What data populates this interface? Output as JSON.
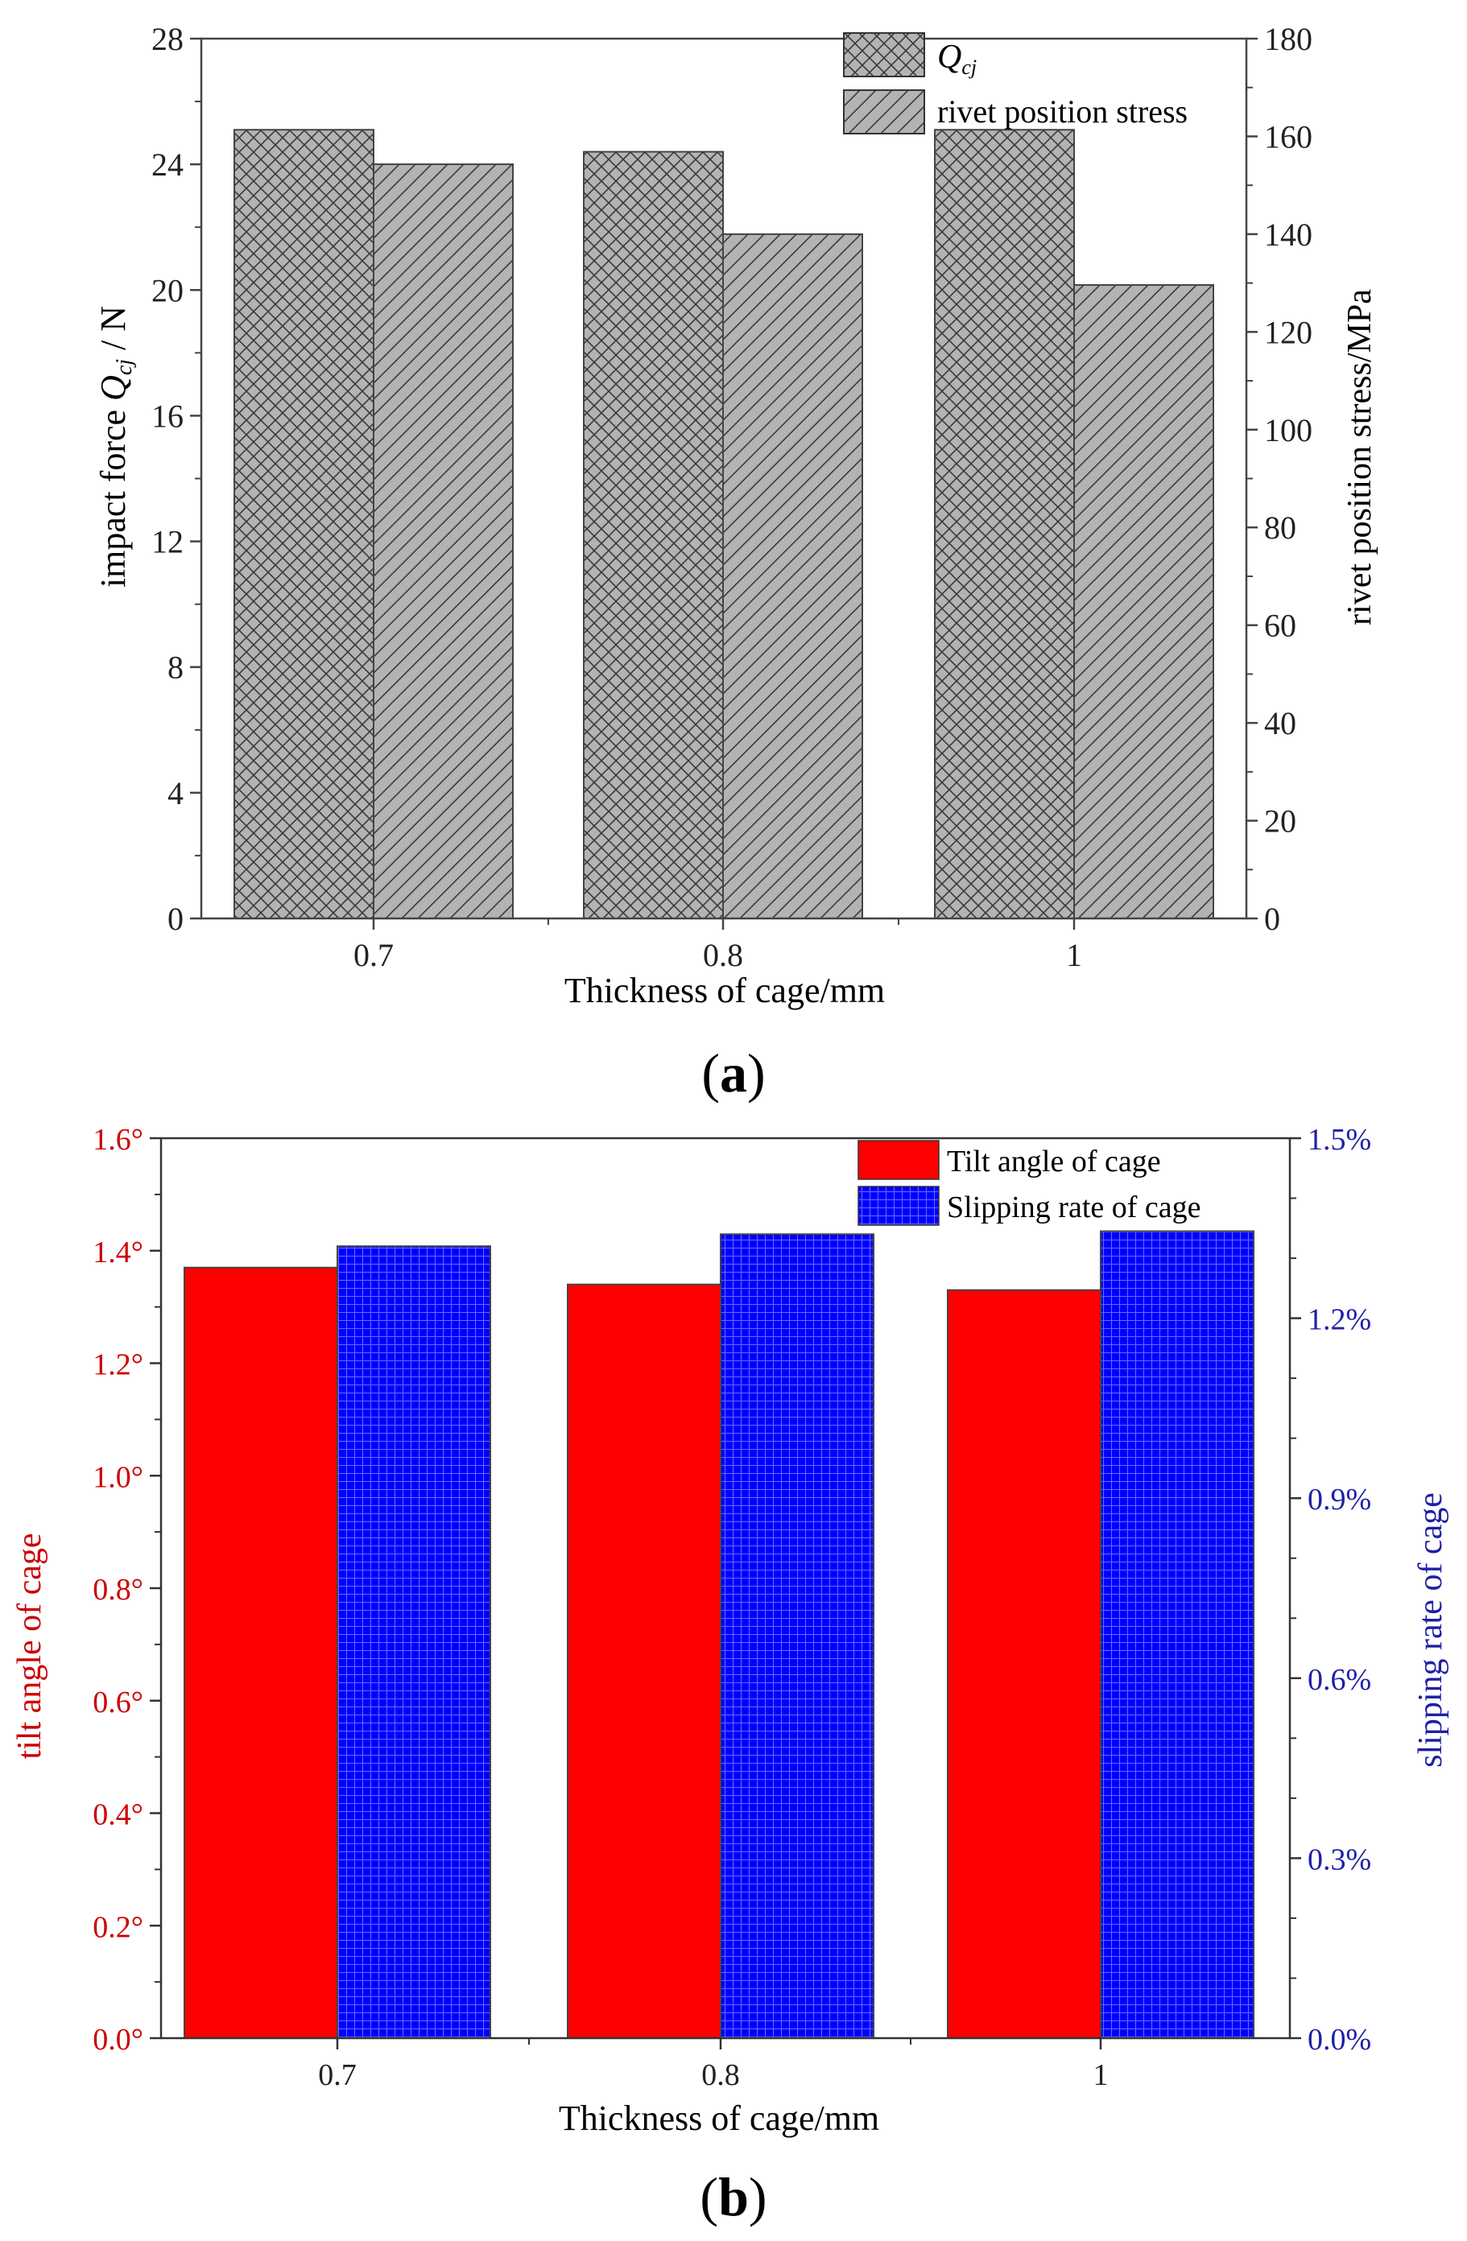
{
  "chart_data": [
    {
      "id": "a",
      "type": "bar",
      "panel_label": "a",
      "xlabel": "Thickness of cage/mm",
      "categories": [
        "0.7",
        "0.8",
        "1"
      ],
      "y_left": {
        "label_prefix": "impact force ",
        "label_symbol": "Q",
        "label_subscript": "cj",
        "label_suffix": " / N",
        "lim": [
          0,
          28
        ],
        "ticks": [
          "0",
          "4",
          "8",
          "12",
          "16",
          "20",
          "24",
          "28"
        ]
      },
      "y_right": {
        "label": "rivet position stress/MPa",
        "lim": [
          0,
          180
        ],
        "ticks": [
          "0",
          "20",
          "40",
          "60",
          "80",
          "100",
          "120",
          "140",
          "160",
          "180"
        ]
      },
      "series": [
        {
          "name": "Q",
          "subscript": "cj",
          "axis": "left",
          "pattern": "crosshatch",
          "fill": "#b3b3b3",
          "values": [
            25.1,
            24.4,
            25.1
          ]
        },
        {
          "name": "rivet position stress",
          "axis": "right",
          "pattern": "diagonal",
          "fill": "#b3b3b3",
          "values": [
            154.3,
            140.0,
            129.6
          ]
        }
      ],
      "legend_position": "top-right"
    },
    {
      "id": "b",
      "type": "bar",
      "panel_label": "b",
      "xlabel": "Thickness of cage/mm",
      "categories": [
        "0.7",
        "0.8",
        "1"
      ],
      "y_left": {
        "label": "tilt angle of cage",
        "color": "#cc0000",
        "lim": [
          0,
          1.6
        ],
        "ticks": [
          "0.0°",
          "0.2°",
          "0.4°",
          "0.6°",
          "0.8°",
          "1.0°",
          "1.2°",
          "1.4°",
          "1.6°"
        ]
      },
      "y_right": {
        "label": "slipping rate of cage",
        "color": "#1f1fa8",
        "lim": [
          0,
          1.5
        ],
        "ticks": [
          "0.0%",
          "0.3%",
          "0.6%",
          "0.9%",
          "1.2%",
          "1.5%"
        ]
      },
      "series": [
        {
          "name": "Tilt angle of cage",
          "axis": "left",
          "pattern": "solid",
          "fill": "#ff0000",
          "values": [
            1.37,
            1.34,
            1.33
          ]
        },
        {
          "name": "Slipping rate of cage",
          "axis": "right",
          "pattern": "grid",
          "fill": "#0000ff",
          "values": [
            1.32,
            1.34,
            1.345
          ]
        }
      ],
      "legend_position": "top-right"
    }
  ]
}
